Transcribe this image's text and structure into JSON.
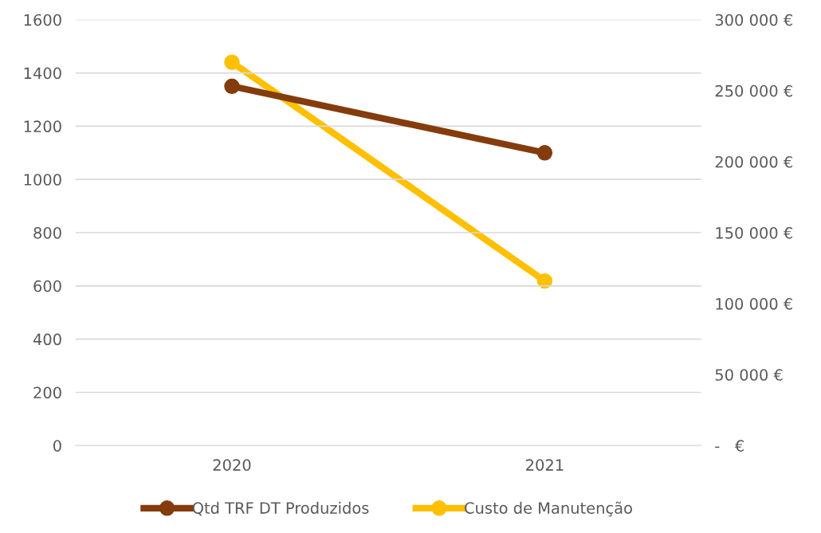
{
  "chart_data": {
    "type": "line",
    "categories": [
      "2020",
      "2021"
    ],
    "series": [
      {
        "name": "Qtd TRF DT Produzidos",
        "color": "#843c0c",
        "values": [
          1350,
          1100
        ]
      },
      {
        "name": "Custo de Manutenção",
        "color": "#ffc000",
        "values": [
          270000,
          116000
        ],
        "axis": "y2"
      }
    ],
    "ylim": [
      0,
      1600
    ],
    "yticks": [
      0,
      200,
      400,
      600,
      800,
      1000,
      1200,
      1400,
      1600
    ],
    "y2lim": [
      0,
      300000
    ],
    "y2ticks": [
      {
        "value": 0,
        "label": "-   €"
      },
      {
        "value": 50000,
        "label": "50 000 €"
      },
      {
        "value": 100000,
        "label": "100 000 €"
      },
      {
        "value": 150000,
        "label": "150 000 €"
      },
      {
        "value": 200000,
        "label": "200 000 €"
      },
      {
        "value": 250000,
        "label": "250 000 €"
      },
      {
        "value": 300000,
        "label": "300 000 €"
      }
    ],
    "grid": "y",
    "legend": "bottom",
    "marker": "circle",
    "line_style": "solid"
  }
}
